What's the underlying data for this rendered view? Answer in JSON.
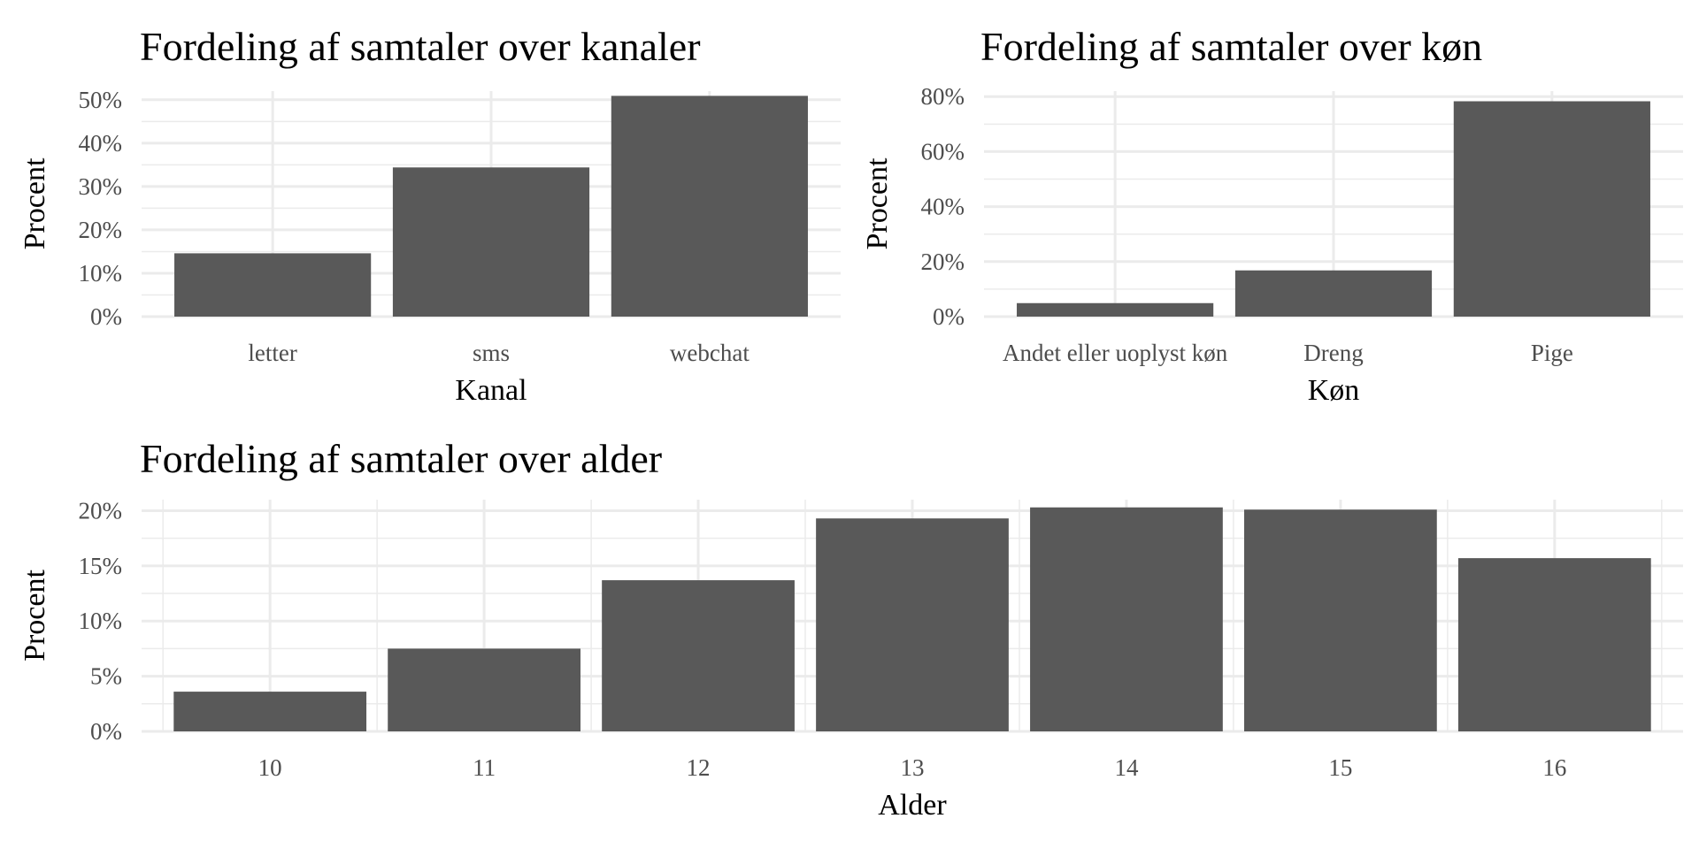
{
  "chart_data": [
    {
      "id": "kanal",
      "type": "bar",
      "title": "Fordeling af samtaler over kanaler",
      "xlabel": "Kanal",
      "ylabel": "Procent",
      "categories": [
        "letter",
        "sms",
        "webchat"
      ],
      "values": [
        14.6,
        34.4,
        50.9
      ],
      "ylim": [
        0,
        52
      ],
      "yticks": [
        0,
        10,
        20,
        30,
        40,
        50
      ],
      "ytick_labels": [
        "0%",
        "10%",
        "20%",
        "30%",
        "40%",
        "50%"
      ],
      "grid": true,
      "bar_color": "#595959"
    },
    {
      "id": "koen",
      "type": "bar",
      "title": "Fordeling af samtaler over køn",
      "xlabel": "Køn",
      "ylabel": "Procent",
      "categories": [
        "Andet eller uoplyst køn",
        "Dreng",
        "Pige"
      ],
      "values": [
        4.9,
        16.8,
        78.3
      ],
      "ylim": [
        0,
        82
      ],
      "yticks": [
        0,
        20,
        40,
        60,
        80
      ],
      "ytick_labels": [
        "0%",
        "20%",
        "40%",
        "60%",
        "80%"
      ],
      "grid": true,
      "bar_color": "#595959"
    },
    {
      "id": "alder",
      "type": "bar",
      "title": "Fordeling af samtaler over alder",
      "xlabel": "Alder",
      "ylabel": "Procent",
      "categories": [
        "10",
        "11",
        "12",
        "13",
        "14",
        "15",
        "16"
      ],
      "values": [
        3.6,
        7.5,
        13.7,
        19.3,
        20.3,
        20.1,
        15.7
      ],
      "ylim": [
        0,
        21
      ],
      "yticks": [
        0,
        5,
        10,
        15,
        20
      ],
      "ytick_labels": [
        "0%",
        "5%",
        "10%",
        "15%",
        "20%"
      ],
      "grid": true,
      "bar_color": "#595959"
    }
  ]
}
